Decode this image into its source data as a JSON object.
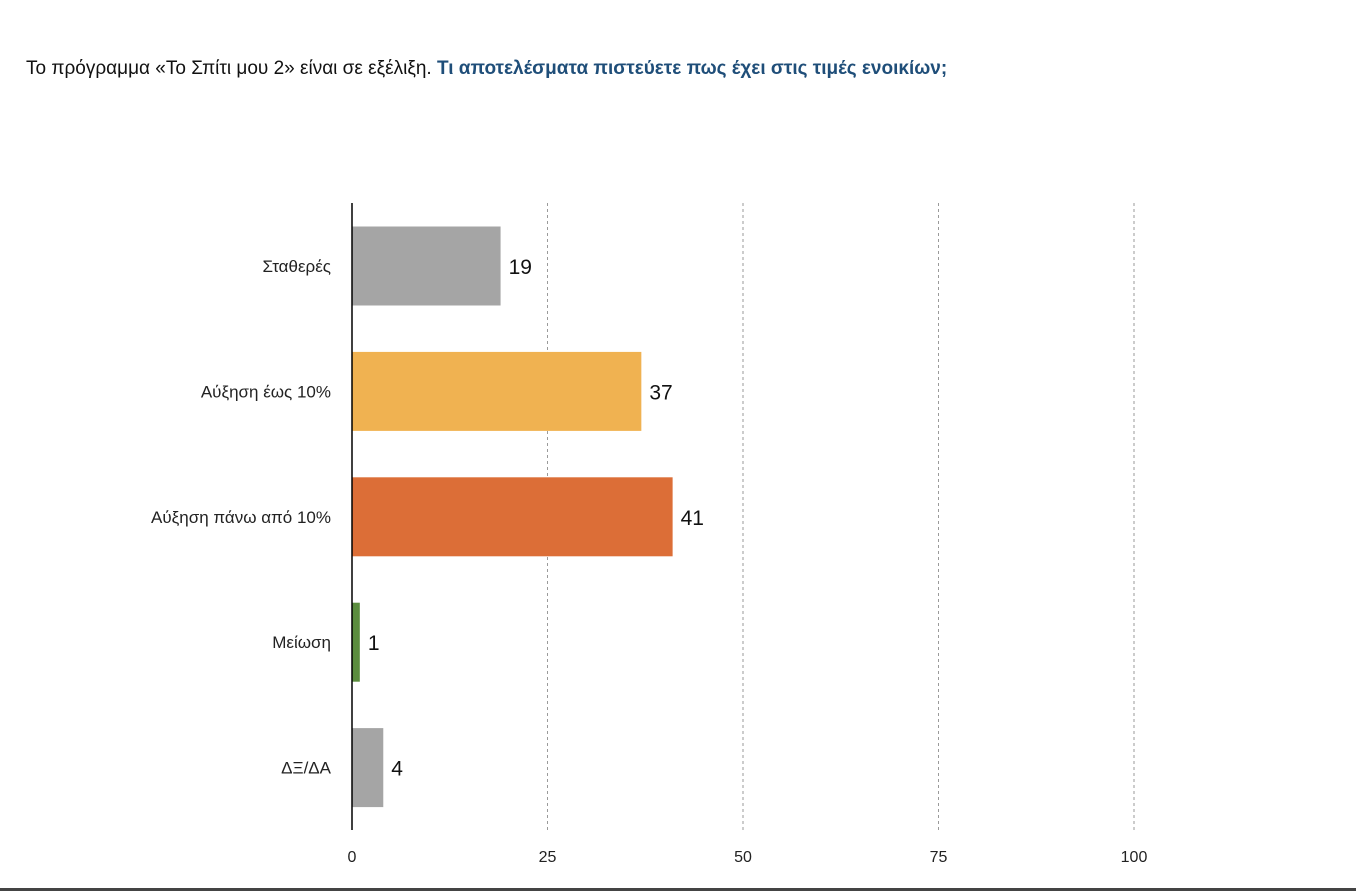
{
  "title": {
    "lead": "Το πρόγραμμα «Το Σπίτι μου 2» είναι σε εξέλιξη.",
    "question": "Τι αποτελέσματα πιστεύετε πως έχει στις τιμές ενοικίων;"
  },
  "chart_data": {
    "type": "bar",
    "orientation": "horizontal",
    "categories": [
      "Σταθερές",
      "Αύξηση έως 10%",
      "Αύξηση πάνω από 10%",
      "Μείωση",
      "ΔΞ/ΔΑ"
    ],
    "values": [
      19,
      37,
      41,
      1,
      4
    ],
    "colors": [
      "#a5a5a5",
      "#f0b251",
      "#dc6e37",
      "#5b8d3e",
      "#a5a5a5"
    ],
    "xlim": [
      0,
      100
    ],
    "ticks": [
      0,
      25,
      50,
      75,
      100
    ],
    "tick_labels": [
      "0",
      "25",
      "50",
      "75",
      "100"
    ],
    "grid": "vertical dashed",
    "data_labels": true,
    "legend": "none"
  }
}
